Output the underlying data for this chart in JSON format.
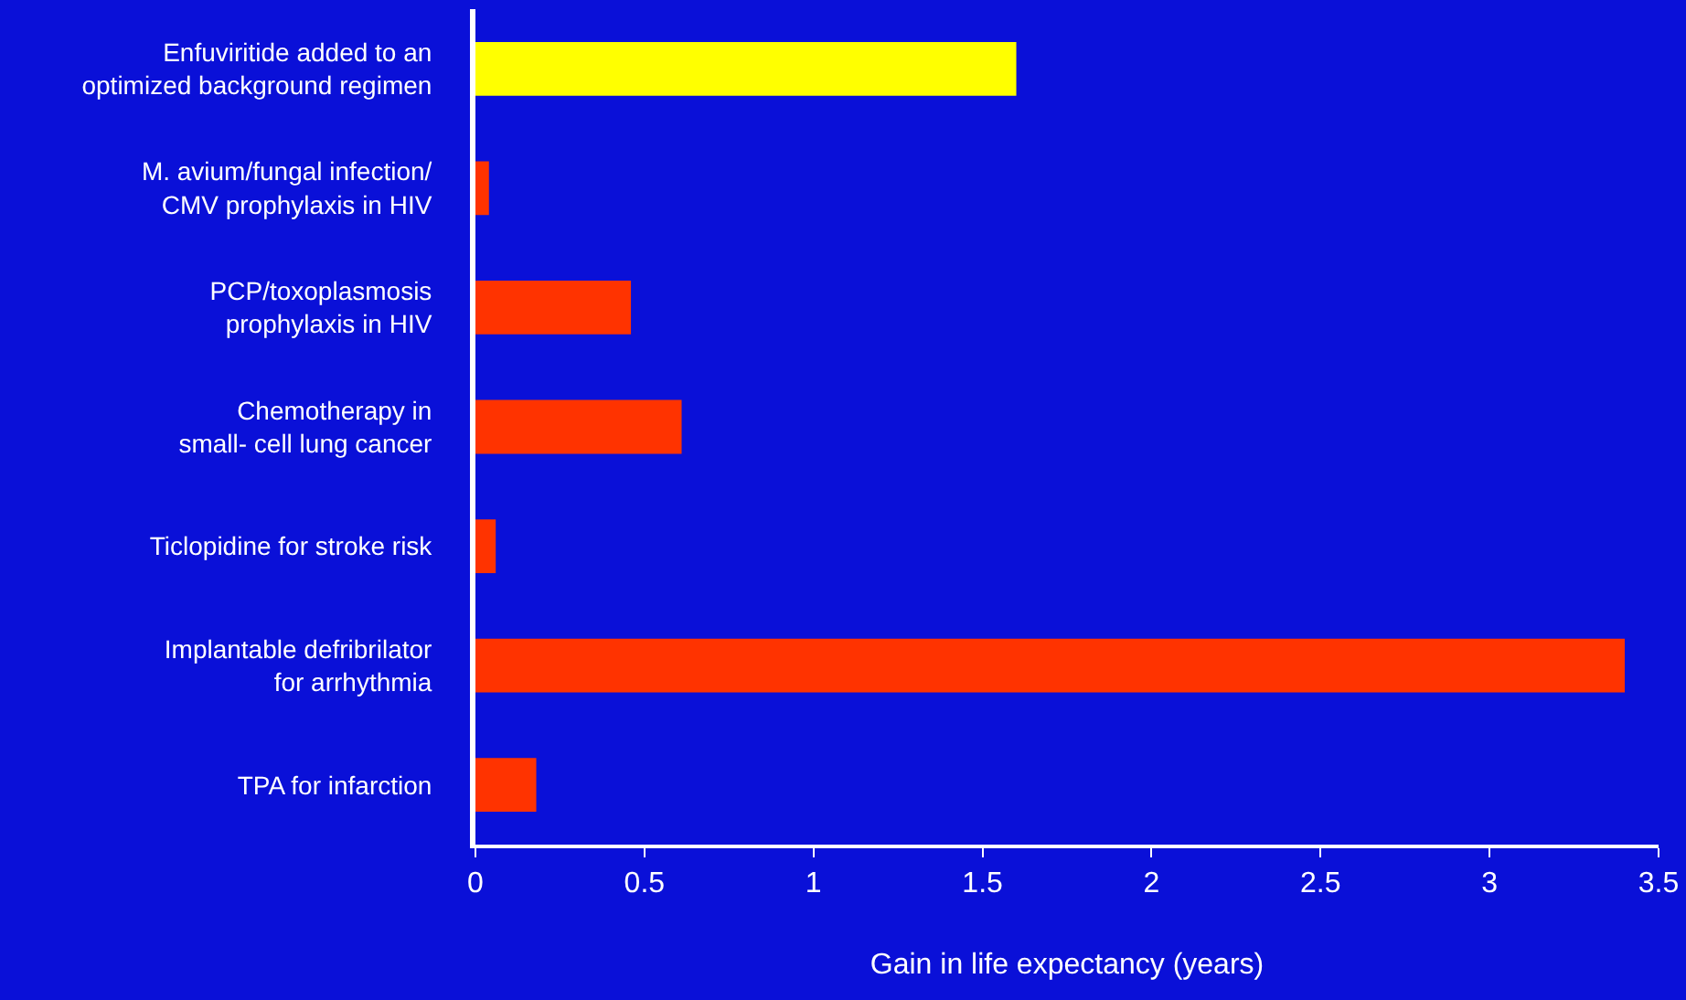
{
  "chart_data": {
    "type": "bar",
    "orientation": "horizontal",
    "xlabel": "Gain in life expectancy (years)",
    "categories": [
      "Enfuviritide added to an\noptimized background regimen",
      "M. avium/fungal infection/\nCMV prophylaxis in HIV",
      "PCP/toxoplasmosis\nprophylaxis in HIV",
      "Chemotherapy in\nsmall- cell lung cancer",
      "Ticlopidine for stroke risk",
      "Implantable defribrilator\nfor arrhythmia",
      "TPA for infarction"
    ],
    "values": [
      1.6,
      0.04,
      0.46,
      0.61,
      0.06,
      3.4,
      0.18
    ],
    "colors": [
      "#ffff00",
      "#ff3300",
      "#ff3300",
      "#ff3300",
      "#ff3300",
      "#ff3300",
      "#ff3300"
    ],
    "xlim": [
      0,
      3.5
    ],
    "xticks": [
      0,
      0.5,
      1,
      1.5,
      2,
      2.5,
      3,
      3.5
    ],
    "grid": false
  }
}
